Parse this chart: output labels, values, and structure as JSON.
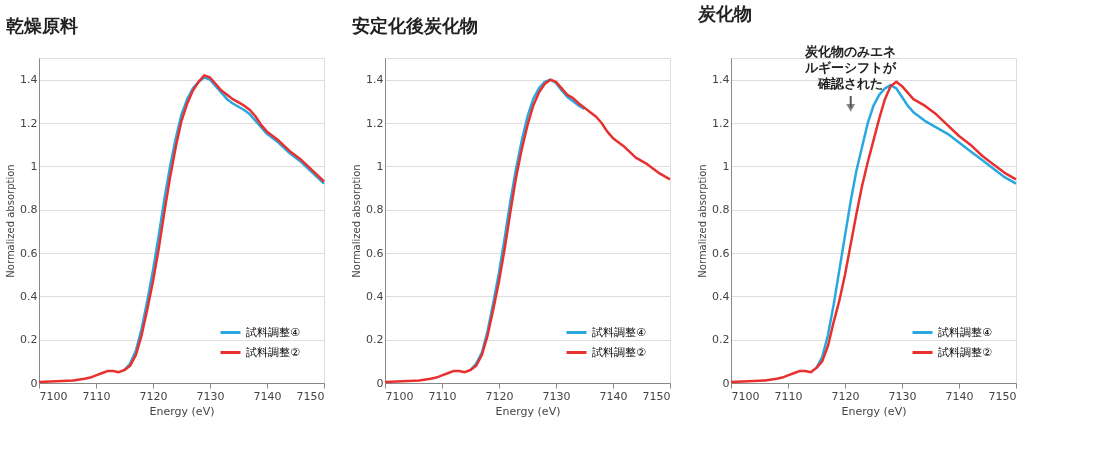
{
  "chart_data": [
    {
      "type": "line",
      "title": "乾燥原料",
      "xlabel": "Energy (eV)",
      "ylabel": "Normalized absorption",
      "xlim": [
        7100,
        7150
      ],
      "xticks": [
        7100,
        7110,
        7120,
        7130,
        7140,
        7150
      ],
      "ylim": [
        0,
        1.5
      ],
      "yticks": [
        0,
        0.2,
        0.4,
        0.6,
        0.8,
        1,
        1.2,
        1.4
      ],
      "grid": "y",
      "legend": "bottom right",
      "series": [
        {
          "name": "試料調整④",
          "color": "#29a8e0",
          "x": [
            7115,
            7116,
            7117,
            7118,
            7119,
            7120,
            7121,
            7122,
            7123,
            7124,
            7125,
            7126,
            7127,
            7128,
            7129,
            7130,
            7131,
            7132,
            7133,
            7134,
            7135,
            7136,
            7137,
            7138,
            7139,
            7140,
            7142,
            7144,
            7146,
            7148,
            7150
          ],
          "values": [
            0.06,
            0.09,
            0.15,
            0.25,
            0.38,
            0.52,
            0.68,
            0.85,
            1.0,
            1.13,
            1.24,
            1.31,
            1.36,
            1.39,
            1.41,
            1.4,
            1.37,
            1.34,
            1.31,
            1.29,
            1.275,
            1.26,
            1.24,
            1.21,
            1.18,
            1.15,
            1.11,
            1.06,
            1.02,
            0.97,
            0.92
          ]
        },
        {
          "name": "試料調整②",
          "color": "#e8312f",
          "x": [
            7100,
            7103,
            7106,
            7108,
            7109,
            7110,
            7111,
            7112,
            7113,
            7114,
            7115,
            7116,
            7117,
            7118,
            7119,
            7120,
            7121,
            7122,
            7123,
            7124,
            7125,
            7126,
            7127,
            7128,
            7129,
            7130,
            7131,
            7132,
            7133,
            7134,
            7135,
            7136,
            7137,
            7138,
            7139,
            7140,
            7142,
            7144,
            7146,
            7148,
            7150
          ],
          "values": [
            0.005,
            0.008,
            0.012,
            0.02,
            0.025,
            0.035,
            0.045,
            0.055,
            0.055,
            0.05,
            0.06,
            0.08,
            0.13,
            0.22,
            0.34,
            0.47,
            0.62,
            0.79,
            0.95,
            1.09,
            1.21,
            1.29,
            1.35,
            1.39,
            1.42,
            1.41,
            1.38,
            1.35,
            1.33,
            1.31,
            1.295,
            1.28,
            1.26,
            1.23,
            1.19,
            1.16,
            1.12,
            1.07,
            1.03,
            0.98,
            0.93
          ]
        }
      ]
    },
    {
      "type": "line",
      "title": "安定化後炭化物",
      "xlabel": "Energy (eV)",
      "ylabel": "Normalized absorption",
      "xlim": [
        7100,
        7150
      ],
      "xticks": [
        7100,
        7110,
        7120,
        7130,
        7140,
        7150
      ],
      "ylim": [
        0,
        1.5
      ],
      "yticks": [
        0,
        0.2,
        0.4,
        0.6,
        0.8,
        1,
        1.2,
        1.4
      ],
      "grid": "y",
      "legend": "bottom right",
      "series": [
        {
          "name": "試料調整④",
          "color": "#29a8e0",
          "x": [
            7115,
            7116,
            7117,
            7118,
            7119,
            7120,
            7121,
            7122,
            7123,
            7124,
            7125,
            7126,
            7127,
            7128,
            7129,
            7130,
            7131,
            7132,
            7133,
            7134,
            7135
          ],
          "values": [
            0.06,
            0.09,
            0.14,
            0.24,
            0.37,
            0.51,
            0.67,
            0.84,
            0.99,
            1.12,
            1.23,
            1.31,
            1.36,
            1.39,
            1.4,
            1.385,
            1.35,
            1.32,
            1.3,
            1.28,
            1.265
          ]
        },
        {
          "name": "試料調整②",
          "color": "#e8312f",
          "x": [
            7100,
            7103,
            7106,
            7108,
            7109,
            7110,
            7111,
            7112,
            7113,
            7114,
            7115,
            7116,
            7117,
            7118,
            7119,
            7120,
            7121,
            7122,
            7123,
            7124,
            7125,
            7126,
            7127,
            7128,
            7129,
            7130,
            7131,
            7132,
            7133,
            7134,
            7135,
            7136,
            7137,
            7138,
            7139,
            7140,
            7142,
            7144,
            7146,
            7148,
            7150
          ],
          "values": [
            0.005,
            0.008,
            0.012,
            0.02,
            0.025,
            0.035,
            0.045,
            0.055,
            0.055,
            0.05,
            0.06,
            0.08,
            0.13,
            0.22,
            0.34,
            0.47,
            0.62,
            0.79,
            0.95,
            1.08,
            1.19,
            1.28,
            1.34,
            1.38,
            1.4,
            1.39,
            1.36,
            1.33,
            1.315,
            1.29,
            1.27,
            1.25,
            1.23,
            1.2,
            1.16,
            1.13,
            1.09,
            1.04,
            1.01,
            0.97,
            0.94
          ]
        }
      ]
    },
    {
      "type": "line",
      "title": "炭化物",
      "xlabel": "Energy (eV)",
      "ylabel": "Normalized absorption",
      "xlim": [
        7100,
        7150
      ],
      "xticks": [
        7100,
        7110,
        7120,
        7130,
        7140,
        7150
      ],
      "ylim": [
        0,
        1.5
      ],
      "yticks": [
        0,
        0.2,
        0.4,
        0.6,
        0.8,
        1,
        1.2,
        1.4
      ],
      "grid": "y",
      "legend": "bottom right",
      "annotations": [
        {
          "text": "炭化物のみエネルギーシフトが確認された",
          "x": 7121,
          "y": 1.27
        }
      ],
      "series": [
        {
          "name": "試料調整④",
          "color": "#29a8e0",
          "x": [
            7115,
            7116,
            7117,
            7118,
            7119,
            7120,
            7121,
            7122,
            7123,
            7124,
            7125,
            7126,
            7127,
            7128,
            7129,
            7130,
            7131,
            7132,
            7134,
            7136,
            7138,
            7140,
            7142,
            7144,
            7146,
            7148,
            7150
          ],
          "values": [
            0.07,
            0.12,
            0.22,
            0.36,
            0.52,
            0.68,
            0.84,
            0.98,
            1.09,
            1.2,
            1.28,
            1.33,
            1.36,
            1.375,
            1.36,
            1.32,
            1.28,
            1.25,
            1.21,
            1.18,
            1.15,
            1.11,
            1.07,
            1.03,
            0.99,
            0.95,
            0.92
          ]
        },
        {
          "name": "試料調整②",
          "color": "#e8312f",
          "x": [
            7100,
            7103,
            7106,
            7108,
            7109,
            7110,
            7111,
            7112,
            7113,
            7114,
            7115,
            7116,
            7117,
            7118,
            7119,
            7120,
            7121,
            7122,
            7123,
            7124,
            7125,
            7126,
            7127,
            7128,
            7129,
            7130,
            7131,
            7132,
            7134,
            7136,
            7138,
            7140,
            7142,
            7144,
            7146,
            7148,
            7150
          ],
          "values": [
            0.005,
            0.008,
            0.012,
            0.02,
            0.025,
            0.035,
            0.045,
            0.055,
            0.055,
            0.05,
            0.07,
            0.1,
            0.17,
            0.28,
            0.38,
            0.5,
            0.64,
            0.78,
            0.91,
            1.02,
            1.12,
            1.22,
            1.31,
            1.37,
            1.39,
            1.37,
            1.34,
            1.31,
            1.28,
            1.24,
            1.19,
            1.14,
            1.1,
            1.05,
            1.01,
            0.97,
            0.94
          ]
        }
      ]
    }
  ]
}
